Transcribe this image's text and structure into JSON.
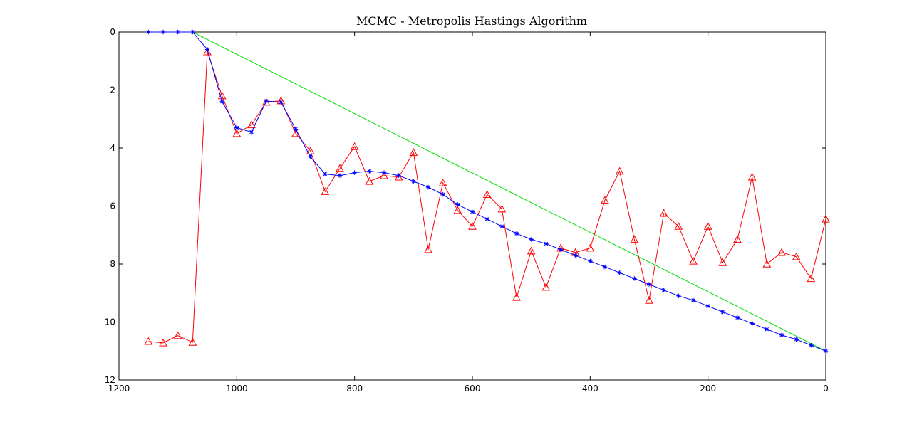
{
  "chart_data": {
    "type": "line",
    "title": "MCMC - Metropolis Hastings Algorithm",
    "xlabel": "",
    "ylabel": "",
    "xlim": [
      1200,
      0
    ],
    "ylim": [
      0,
      12
    ],
    "x_reversed": true,
    "y_reversed": true,
    "xticks": [
      1200,
      1000,
      800,
      600,
      400,
      200,
      0
    ],
    "yticks": [
      0,
      2,
      4,
      6,
      8,
      10,
      12
    ],
    "grid": false,
    "legend": "none",
    "series": [
      {
        "color": "#00dd00",
        "marker": "none",
        "x": [
          1075,
          0
        ],
        "y": [
          0,
          11
        ]
      },
      {
        "color": "#ff0000",
        "marker": "triangle",
        "x": [
          1150,
          1125,
          1100,
          1075,
          1050,
          1025,
          1000,
          975,
          950,
          925,
          900,
          875,
          850,
          825,
          800,
          775,
          750,
          725,
          700,
          675,
          650,
          625,
          600,
          575,
          550,
          525,
          500,
          475,
          450,
          425,
          400,
          375,
          350,
          325,
          300,
          275,
          250,
          225,
          200,
          175,
          150,
          125,
          100,
          75,
          50,
          25,
          0
        ],
        "y": [
          10.67,
          10.72,
          10.47,
          10.7,
          0.68,
          2.2,
          3.5,
          3.2,
          2.42,
          2.37,
          3.5,
          4.1,
          5.5,
          4.7,
          3.95,
          5.15,
          4.95,
          5.0,
          4.15,
          7.5,
          5.2,
          6.15,
          6.7,
          5.6,
          6.1,
          9.15,
          7.55,
          8.8,
          7.45,
          7.6,
          7.45,
          5.8,
          4.8,
          7.15,
          9.25,
          6.25,
          6.7,
          7.9,
          6.7,
          7.95,
          7.15,
          5.0,
          8.0,
          7.6,
          7.75,
          8.5,
          6.45
        ]
      },
      {
        "color": "#0000ff",
        "marker": "star",
        "x": [
          1150,
          1125,
          1100,
          1075,
          1050,
          1025,
          1000,
          975,
          950,
          925,
          900,
          875,
          850,
          825,
          800,
          775,
          750,
          725,
          700,
          675,
          650,
          625,
          600,
          575,
          550,
          525,
          500,
          475,
          450,
          425,
          400,
          375,
          350,
          325,
          300,
          275,
          250,
          225,
          200,
          175,
          150,
          125,
          100,
          75,
          50,
          25,
          0
        ],
        "y": [
          0,
          0,
          0,
          0,
          0.6,
          2.4,
          3.3,
          3.45,
          2.38,
          2.42,
          3.35,
          4.3,
          4.9,
          4.95,
          4.85,
          4.8,
          4.85,
          4.95,
          5.15,
          5.35,
          5.6,
          5.95,
          6.2,
          6.45,
          6.7,
          6.95,
          7.15,
          7.3,
          7.5,
          7.7,
          7.9,
          8.1,
          8.3,
          8.5,
          8.7,
          8.9,
          9.1,
          9.25,
          9.45,
          9.65,
          9.85,
          10.05,
          10.25,
          10.45,
          10.6,
          10.8,
          11.0
        ]
      }
    ]
  }
}
